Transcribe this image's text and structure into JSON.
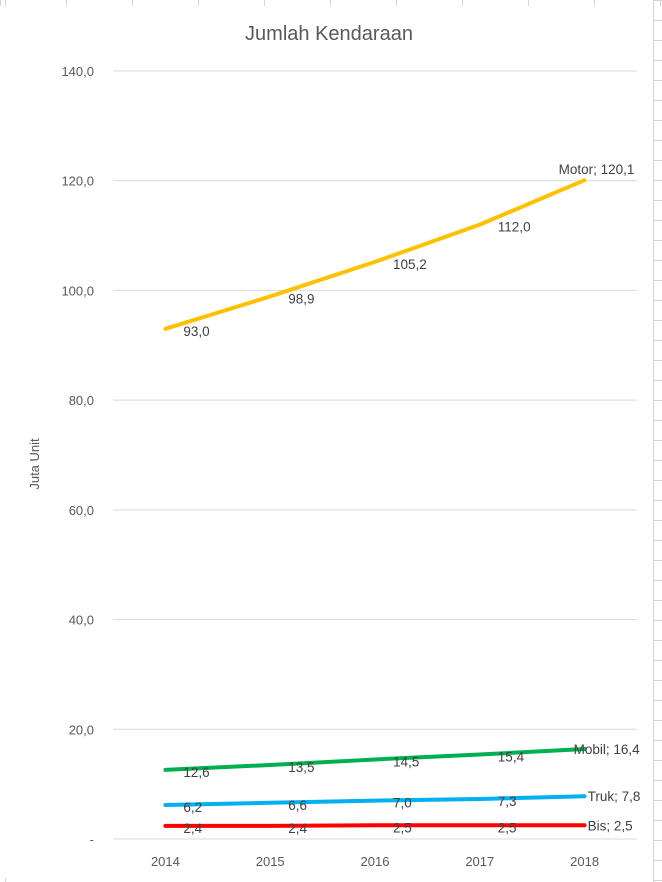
{
  "chart_data": {
    "type": "line",
    "title": "Jumlah Kendaraan",
    "xlabel": "",
    "ylabel": "Juta Unit",
    "categories": [
      "2014",
      "2015",
      "2016",
      "2017",
      "2018"
    ],
    "ylim": [
      0,
      140
    ],
    "y_ticks": [
      0,
      20,
      40,
      60,
      80,
      100,
      120,
      140
    ],
    "y_tick_labels": [
      "-",
      "20,0",
      "40,0",
      "60,0",
      "80,0",
      "100,0",
      "120,0",
      "140,0"
    ],
    "grid": true,
    "legend": "none",
    "series": [
      {
        "name": "Motor",
        "color": "#FFC000",
        "values": [
          93.0,
          98.9,
          105.2,
          112.0,
          120.1
        ],
        "value_labels": [
          "93,0",
          "98,9",
          "105,2",
          "112,0",
          "120,1"
        ],
        "end_label": "Motor;  120,1"
      },
      {
        "name": "Mobil",
        "color": "#00B050",
        "values": [
          12.6,
          13.5,
          14.5,
          15.4,
          16.4
        ],
        "value_labels": [
          "12,6",
          "13,5",
          "14,5",
          "15,4",
          "16,4"
        ],
        "end_label": "Mobil;  16,4"
      },
      {
        "name": "Truk",
        "color": "#00B0F0",
        "values": [
          6.2,
          6.6,
          7.0,
          7.3,
          7.8
        ],
        "value_labels": [
          "6,2",
          "6,6",
          "7,0",
          "7,3",
          "7,8"
        ],
        "end_label": "Truk;  7,8"
      },
      {
        "name": "Bis",
        "color": "#FF0000",
        "values": [
          2.4,
          2.4,
          2.5,
          2.5,
          2.5
        ],
        "value_labels": [
          "2,4",
          "2,4",
          "2,5",
          "2,5",
          "2,5"
        ],
        "end_label": "Bis;  2,5"
      }
    ]
  }
}
